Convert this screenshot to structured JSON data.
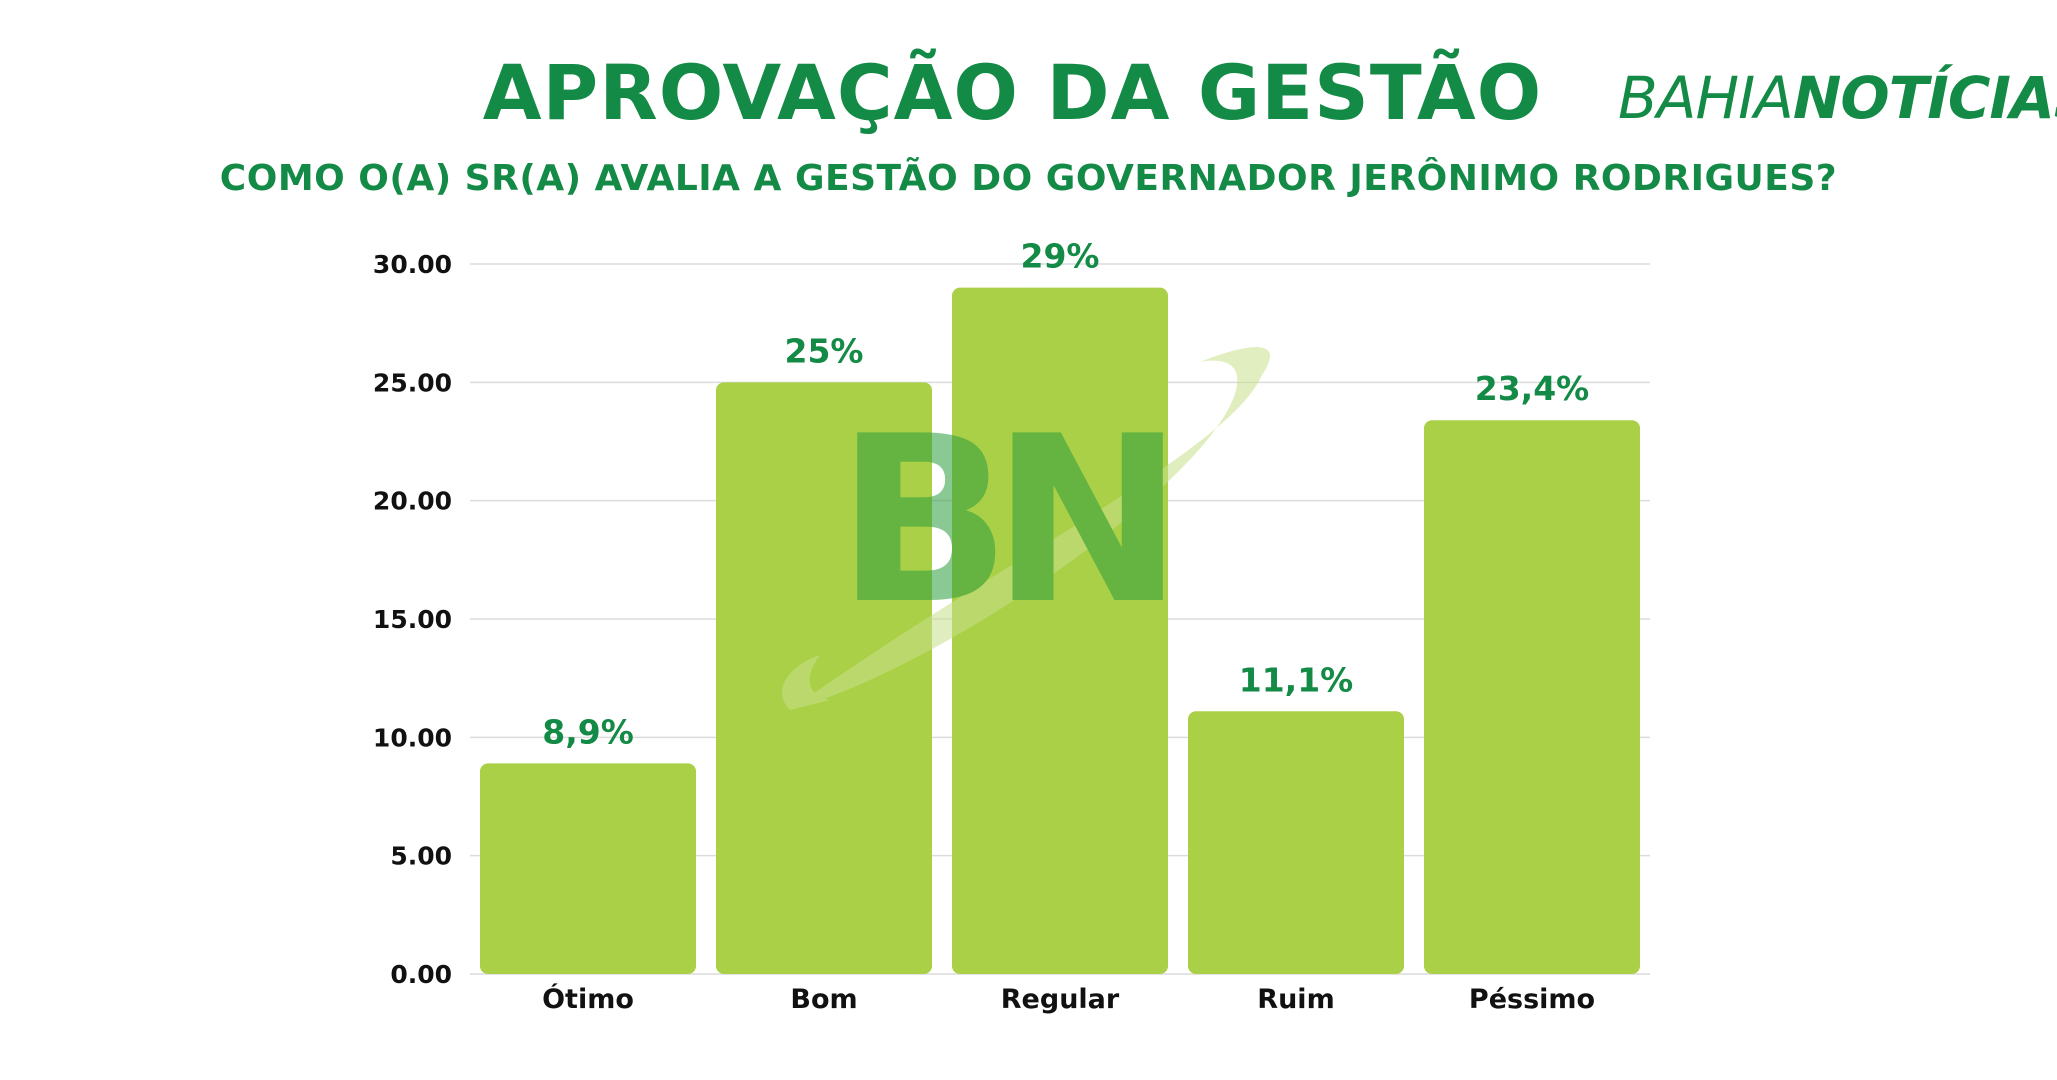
{
  "header": {
    "title": "APROVAÇÃO DA GESTÃO",
    "subtitle": "COMO O(A) SR(A) AVALIA A GESTÃO DO GOVERNADOR JERÔNIMO RODRIGUES?",
    "logo_bahia": "BAHIA",
    "logo_noticias": "NOTÍCIAS",
    "watermark": "BN"
  },
  "colors": {
    "bar": "#a9d046",
    "accent": "#138a45",
    "grid": "#dcdcdc"
  },
  "chart_data": {
    "type": "bar",
    "title": "APROVAÇÃO DA GESTÃO",
    "subtitle": "COMO O(A) SR(A) AVALIA A GESTÃO DO GOVERNADOR JERÔNIMO RODRIGUES?",
    "categories": [
      "Ótimo",
      "Bom",
      "Regular",
      "Ruim",
      "Péssimo"
    ],
    "values": [
      8.9,
      25,
      29,
      11.1,
      23.4
    ],
    "data_labels": [
      "8,9%",
      "25%",
      "29%",
      "11,1%",
      "23,4%"
    ],
    "ylim": [
      0,
      30
    ],
    "yticks": [
      0,
      5,
      10,
      15,
      20,
      25,
      30
    ],
    "ytick_labels": [
      "0.00",
      "5.00",
      "10.00",
      "15.00",
      "20.00",
      "25.00",
      "30.00"
    ],
    "xlabel": "",
    "ylabel": "",
    "grid": true,
    "legend": "none"
  }
}
